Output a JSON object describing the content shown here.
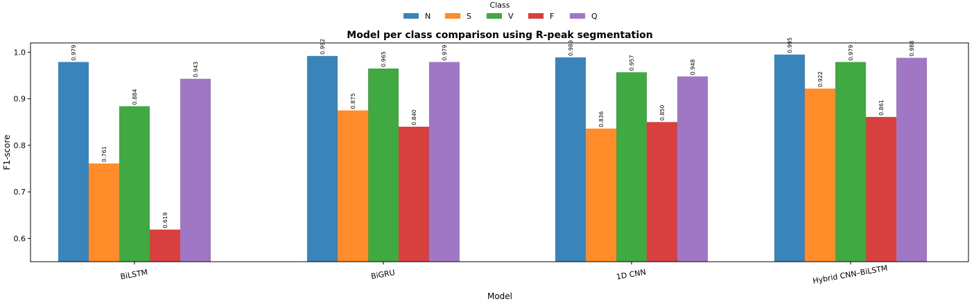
{
  "chart_data": {
    "type": "bar",
    "title": "Model per class comparison using R-peak segmentation",
    "xlabel": "Model",
    "ylabel": "F1-score",
    "ylim": [
      0.55,
      1.02
    ],
    "yticks": [
      "0.6",
      "0.7",
      "0.8",
      "0.9",
      "1.0"
    ],
    "grid": false,
    "legend": {
      "title": "Class",
      "placement": "top-center"
    },
    "categories": [
      "BiLSTM",
      "BiGRU",
      "1D CNN",
      "Hybrid CNN–BiLSTM"
    ],
    "series": [
      {
        "name": "N",
        "color": "#3a84bc",
        "values": [
          0.979,
          0.992,
          0.989,
          0.995
        ],
        "labels": [
          "0.979",
          "0.992",
          "0.989",
          "0.995"
        ]
      },
      {
        "name": "S",
        "color": "#ff8c29",
        "values": [
          0.761,
          0.875,
          0.836,
          0.922
        ],
        "labels": [
          "0.761",
          "0.875",
          "0.836",
          "0.922"
        ]
      },
      {
        "name": "V",
        "color": "#41a941",
        "values": [
          0.884,
          0.965,
          0.957,
          0.979
        ],
        "labels": [
          "0.884",
          "0.965",
          "0.957",
          "0.979"
        ]
      },
      {
        "name": "F",
        "color": "#d83f3f",
        "values": [
          0.619,
          0.84,
          0.85,
          0.861
        ],
        "labels": [
          "0.619",
          "0.840",
          "0.850",
          "0.861"
        ]
      },
      {
        "name": "Q",
        "color": "#a077c5",
        "values": [
          0.943,
          0.979,
          0.948,
          0.988
        ],
        "labels": [
          "0.943",
          "0.979",
          "0.948",
          "0.988"
        ]
      }
    ]
  }
}
